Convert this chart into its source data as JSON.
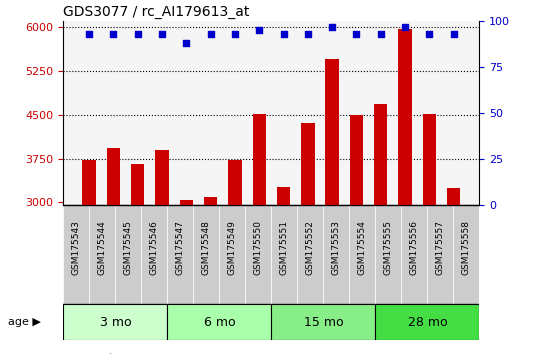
{
  "title": "GDS3077 / rc_AI179613_at",
  "samples": [
    "GSM175543",
    "GSM175544",
    "GSM175545",
    "GSM175546",
    "GSM175547",
    "GSM175548",
    "GSM175549",
    "GSM175550",
    "GSM175551",
    "GSM175552",
    "GSM175553",
    "GSM175554",
    "GSM175555",
    "GSM175556",
    "GSM175557",
    "GSM175558"
  ],
  "counts": [
    3720,
    3930,
    3660,
    3900,
    3040,
    3100,
    3720,
    4520,
    3260,
    4360,
    5450,
    4490,
    4680,
    5960,
    4520,
    3240
  ],
  "percentile": [
    93,
    93,
    93,
    93,
    88,
    93,
    93,
    95,
    93,
    93,
    97,
    93,
    93,
    97,
    93,
    93
  ],
  "age_groups": [
    {
      "label": "3 mo",
      "start": 0,
      "end": 4,
      "color": "#ccffcc"
    },
    {
      "label": "6 mo",
      "start": 4,
      "end": 8,
      "color": "#aaffaa"
    },
    {
      "label": "15 mo",
      "start": 8,
      "end": 12,
      "color": "#88ee88"
    },
    {
      "label": "28 mo",
      "start": 12,
      "end": 16,
      "color": "#44dd44"
    }
  ],
  "bar_color": "#cc0000",
  "dot_color": "#0000cc",
  "ylim_left": [
    2950,
    6100
  ],
  "ylim_right": [
    0,
    100
  ],
  "yticks_left": [
    3000,
    3750,
    4500,
    5250,
    6000
  ],
  "yticks_right": [
    0,
    25,
    50,
    75,
    100
  ],
  "grid_values": [
    3750,
    4500,
    5250
  ],
  "bar_color_hex": "#cc0000",
  "dot_color_hex": "#0000cc",
  "tick_label_color_red": "#cc0000",
  "tick_label_color_blue": "#0000cc",
  "bg_plot": "#f5f5f5",
  "sample_box_color": "#cccccc"
}
